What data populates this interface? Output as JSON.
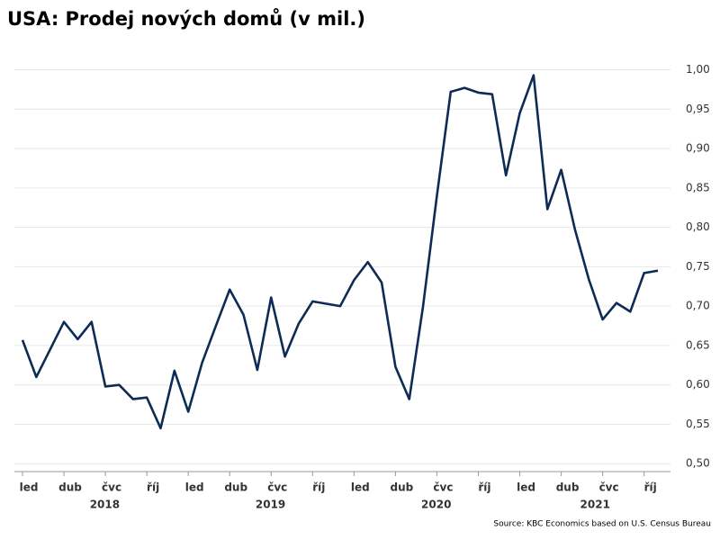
{
  "chart_data": {
    "type": "line",
    "title": "USA: Prodej nových domů (v mil.)",
    "source": "Source: KBC Economics based on U.S. Census Bureau",
    "categories": [
      "led",
      null,
      null,
      "dub",
      null,
      null,
      "čvc",
      null,
      null,
      "říj",
      null,
      null,
      "led",
      null,
      null,
      "dub",
      null,
      null,
      "čvc",
      null,
      null,
      "říj",
      null,
      null,
      "led",
      null,
      null,
      "dub",
      null,
      null,
      "čvc",
      null,
      null,
      "říj",
      null,
      null,
      "led",
      null,
      null,
      "dub",
      null,
      null,
      "čvc",
      null,
      null,
      "říj",
      null
    ],
    "years": [
      {
        "label": "2018",
        "start": 0,
        "end": 11
      },
      {
        "label": "2019",
        "start": 12,
        "end": 23
      },
      {
        "label": "2020",
        "start": 24,
        "end": 35
      },
      {
        "label": "2021",
        "start": 36,
        "end": 46
      }
    ],
    "series": [
      {
        "name": "Prodej nových domů",
        "color": "#0d2b55",
        "values": [
          0.657,
          0.61,
          0.645,
          0.68,
          0.658,
          0.68,
          0.598,
          0.6,
          0.582,
          0.584,
          0.545,
          0.618,
          0.566,
          0.628,
          0.675,
          0.721,
          0.689,
          0.619,
          0.711,
          0.636,
          0.678,
          0.706,
          0.703,
          0.7,
          0.733,
          0.756,
          0.73,
          0.623,
          0.582,
          0.7,
          0.84,
          0.972,
          0.977,
          0.971,
          0.969,
          0.866,
          0.945,
          0.993,
          0.823,
          0.873,
          0.797,
          0.734,
          0.683,
          0.704,
          0.693,
          0.742,
          0.745
        ]
      }
    ],
    "ylim": [
      0.49,
      1.02
    ],
    "yticks": [
      {
        "value": 0.5,
        "label": "0,50"
      },
      {
        "value": 0.55,
        "label": "0,55"
      },
      {
        "value": 0.6,
        "label": "0,60"
      },
      {
        "value": 0.65,
        "label": "0,65"
      },
      {
        "value": 0.7,
        "label": "0,70"
      },
      {
        "value": 0.75,
        "label": "0,75"
      },
      {
        "value": 0.8,
        "label": "0,80"
      },
      {
        "value": 0.85,
        "label": "0,85"
      },
      {
        "value": 0.9,
        "label": "0,90"
      },
      {
        "value": 0.95,
        "label": "0,95"
      },
      {
        "value": 1.0,
        "label": "1,00"
      }
    ],
    "grid": true
  }
}
